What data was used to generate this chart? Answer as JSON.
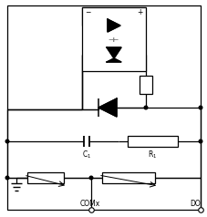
{
  "bg_color": "#ffffff",
  "line_color": "#000000",
  "lw": 0.9
}
